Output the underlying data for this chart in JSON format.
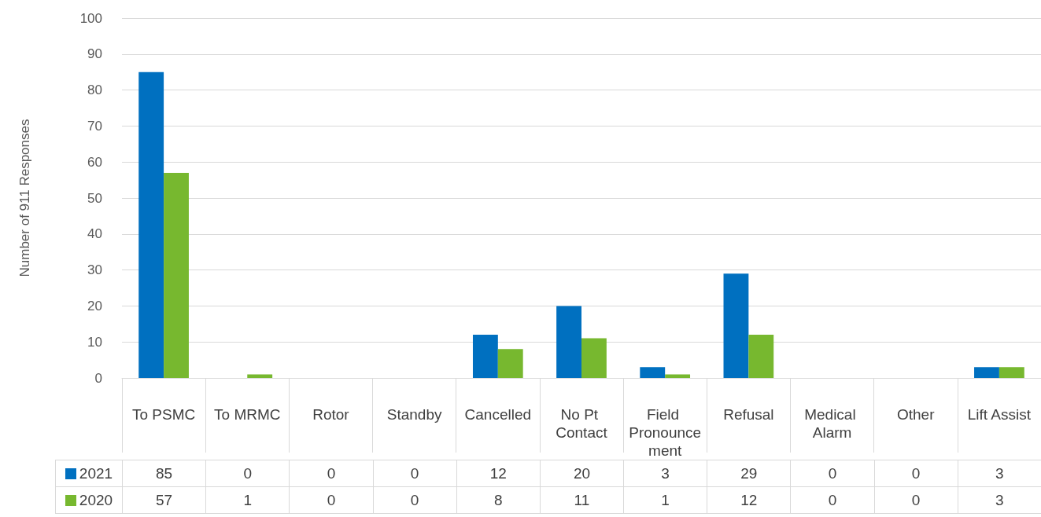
{
  "chart_data": {
    "type": "bar",
    "ylabel": "Number of 911 Responses",
    "categories": [
      "To PSMC",
      "To MRMC",
      "Rotor",
      "Standby",
      "Cancelled",
      "No Pt Contact",
      "Field Pronouncement",
      "Refusal",
      "Medical Alarm",
      "Other",
      "Lift Assist"
    ],
    "series": [
      {
        "name": "2021",
        "color": "#0070c0",
        "values": [
          85,
          0,
          0,
          0,
          12,
          20,
          3,
          29,
          0,
          0,
          3
        ]
      },
      {
        "name": "2020",
        "color": "#77b82f",
        "values": [
          57,
          1,
          0,
          0,
          8,
          11,
          1,
          12,
          0,
          0,
          3
        ]
      }
    ],
    "ylim": [
      0,
      100
    ],
    "yticks": [
      0,
      10,
      20,
      30,
      40,
      50,
      60,
      70,
      80,
      90,
      100
    ],
    "grid": "y",
    "legend": "bottom",
    "data_labels": true
  }
}
